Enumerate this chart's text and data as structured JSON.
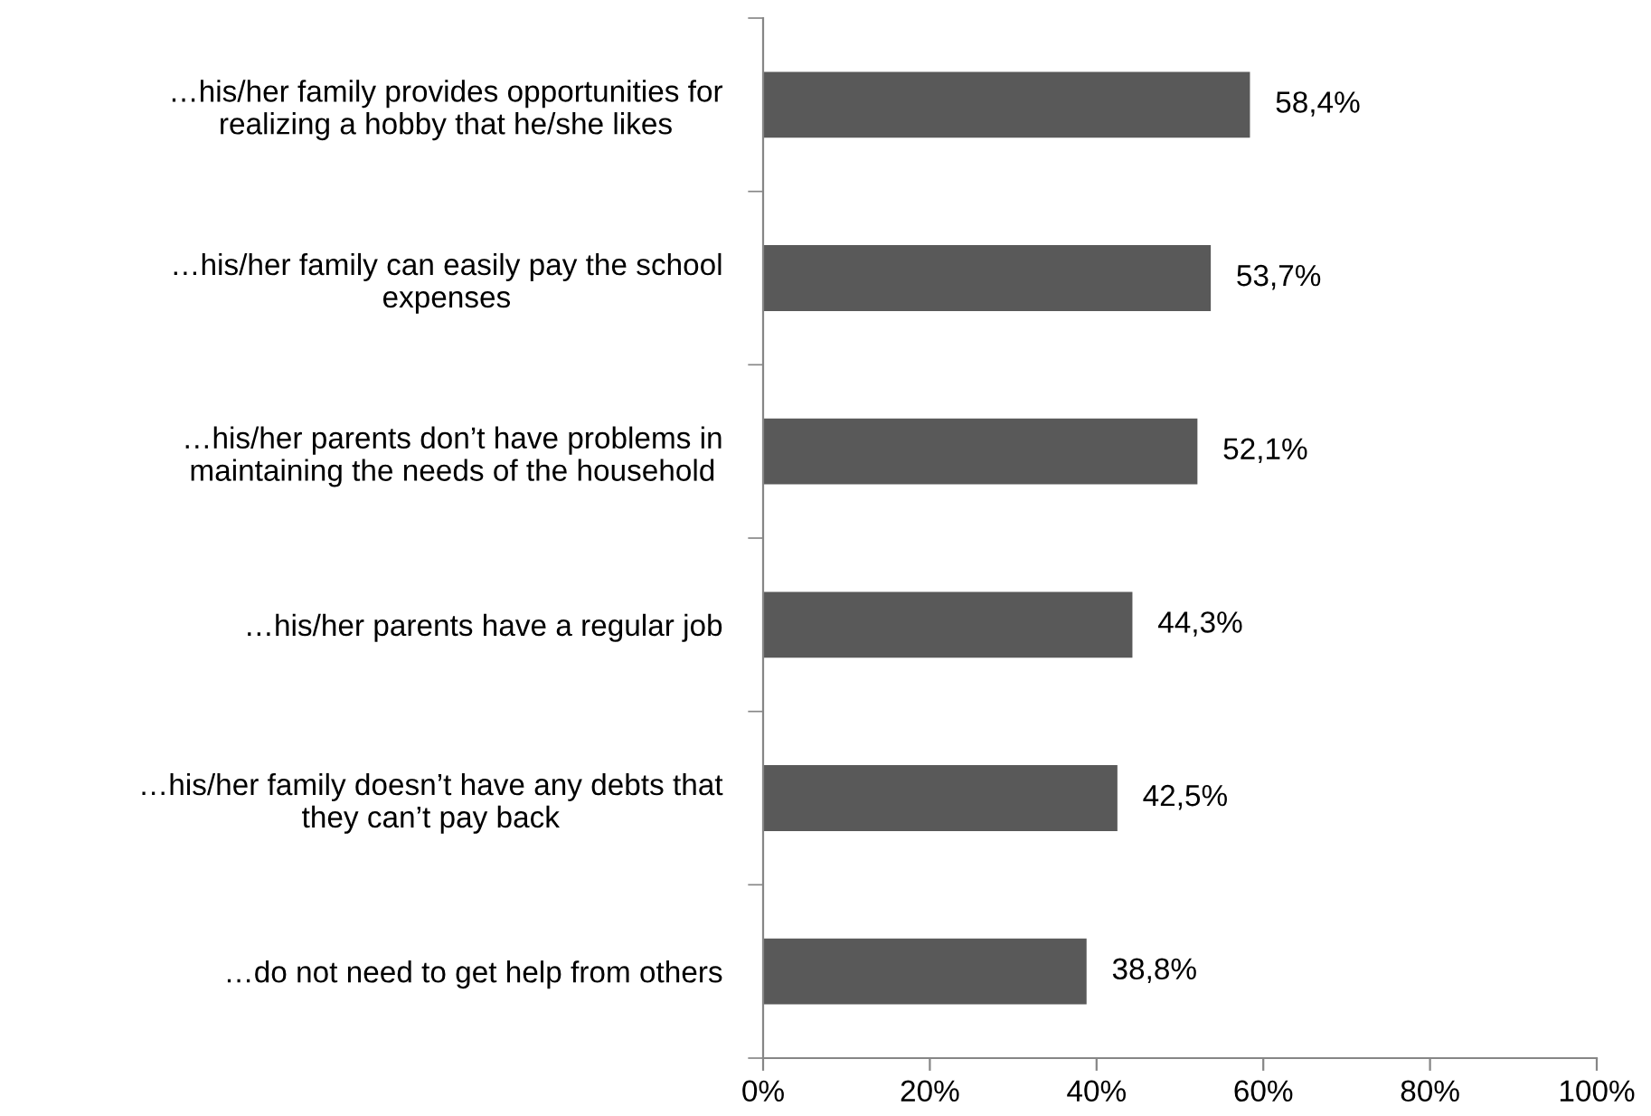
{
  "chart_data": {
    "type": "bar",
    "orientation": "horizontal",
    "categories": [
      "…his/her family provides opportunities for\nrealizing a hobby that he/she likes",
      "…his/her family can easily pay the school\nexpenses",
      "…his/her parents don’t have problems in\nmaintaining the needs of the household",
      "…his/her parents have a regular job",
      "…his/her family doesn’t have any debts that\nthey can’t pay back",
      "…do not need to get help from others"
    ],
    "values": [
      58.4,
      53.7,
      52.1,
      44.3,
      42.5,
      38.8
    ],
    "value_labels": [
      "58,4%",
      "53,7%",
      "52,1%",
      "44,3%",
      "42,5%",
      "38,8%"
    ],
    "color": "#595959",
    "xlim": [
      0,
      100
    ],
    "xticks": [
      {
        "value": 0,
        "label": "0%"
      },
      {
        "value": 20,
        "label": "20%"
      },
      {
        "value": 40,
        "label": "40%"
      },
      {
        "value": 60,
        "label": "60%"
      },
      {
        "value": 80,
        "label": "80%"
      },
      {
        "value": 100,
        "label": "100%"
      }
    ],
    "grid": false,
    "legend": false
  }
}
